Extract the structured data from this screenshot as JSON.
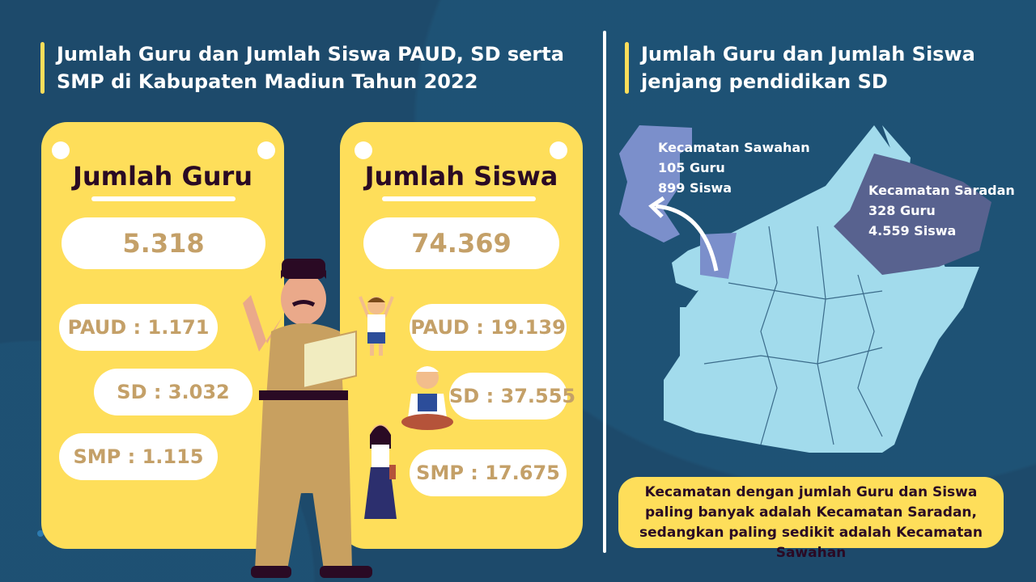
{
  "left_title": "Jumlah Guru dan Jumlah Siswa PAUD, SD serta SMP di Kabupaten Madiun Tahun 2022",
  "right_title": "Jumlah Guru dan Jumlah Siswa jenjang pendidikan SD",
  "guru": {
    "title": "Jumlah Guru",
    "total": "5.318",
    "paud": "PAUD : 1.171",
    "sd": "SD : 3.032",
    "smp": "SMP : 1.115"
  },
  "siswa": {
    "title": "Jumlah Siswa",
    "total": "74.369",
    "paud": "PAUD : 19.139",
    "sd": "SD : 37.555",
    "smp": "SMP : 17.675"
  },
  "map": {
    "sawahan": {
      "name": "Kecamatan Sawahan",
      "guru": "105 Guru",
      "siswa": "899 Siswa"
    },
    "saradan": {
      "name": "Kecamatan Saradan",
      "guru": "328 Guru",
      "siswa": "4.559 Siswa"
    }
  },
  "conclusion": "Kecamatan dengan jumlah Guru dan Siswa paling banyak adalah Kecamatan Saradan, sedangkan paling sedikit adalah Kecamatan Sawahan",
  "colors": {
    "background": "#1d4a6b",
    "accent": "#fede5a",
    "value_text": "#c4a068",
    "map_fill": "#a2dbec",
    "sawahan": "#7b8fcb",
    "saradan": "#58628f"
  }
}
